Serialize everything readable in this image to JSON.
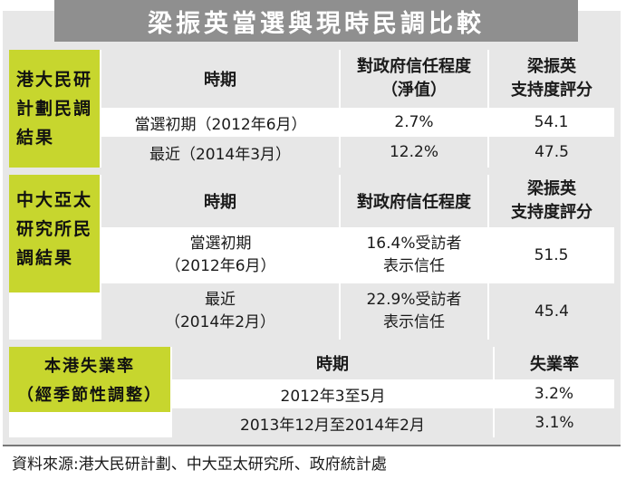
{
  "title": "梁振英當選與現時民調比較",
  "hku": {
    "label_lines": [
      "港大民研",
      "計劃民調",
      "結果"
    ],
    "headers": {
      "period": "時期",
      "trust": "對政府信任程度",
      "trust_note": "（淨值）",
      "rating_l1": "梁振英",
      "rating_l2": "支持度評分"
    },
    "rows": [
      {
        "period": "當選初期（2012年6月）",
        "trust": "2.7%",
        "rating": "54.1"
      },
      {
        "period": "最近（2014年3月）",
        "trust": "12.2%",
        "rating": "47.5"
      }
    ]
  },
  "cuhk": {
    "label_lines": [
      "中大亞太",
      "研究所民",
      "調結果"
    ],
    "headers": {
      "period": "時期",
      "trust": "對政府信任程度",
      "rating_l1": "梁振英",
      "rating_l2": "支持度評分"
    },
    "rows": [
      {
        "period_l1": "當選初期",
        "period_l2": "（2012年6月）",
        "trust_l1": "16.4%受訪者",
        "trust_l2": "表示信任",
        "rating": "51.5"
      },
      {
        "period_l1": "最近",
        "period_l2": "（2014年2月）",
        "trust_l1": "22.9%受訪者",
        "trust_l2": "表示信任",
        "rating": "45.4"
      }
    ]
  },
  "unemployment": {
    "label_l1": "本港失業率",
    "label_l2": "（經季節性調整）",
    "headers": {
      "period": "時期",
      "rate": "失業率"
    },
    "rows": [
      {
        "period": "2012年3至5月",
        "rate": "3.2%"
      },
      {
        "period": "2013年12月至2014年2月",
        "rate": "3.1%"
      }
    ]
  },
  "source": "資料來源:港大民研計劃、中大亞太研究所、政府統計處"
}
